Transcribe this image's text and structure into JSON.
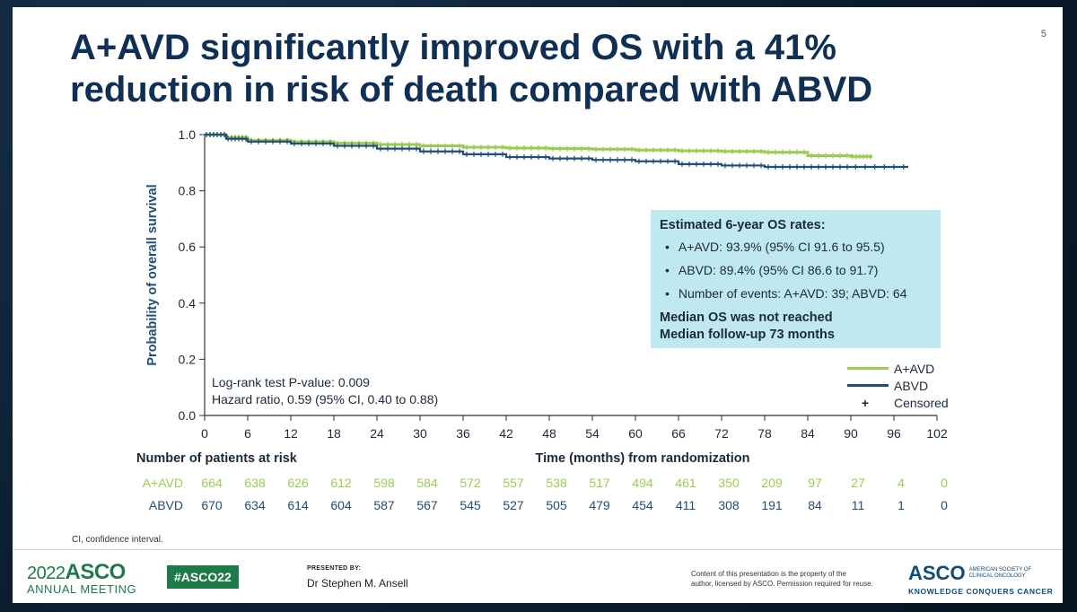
{
  "slide": {
    "title_line1": "A+AVD significantly improved OS with a 41%",
    "title_line2": "reduction in risk of death compared with ABVD",
    "slide_number": "5"
  },
  "colors": {
    "aavd": "#9ccc52",
    "abvd": "#1f4e79",
    "title": "#0f2f55",
    "box": "#bfe9ee"
  },
  "chart_data": {
    "type": "line",
    "xlabel": "Time (months) from randomization",
    "ylabel": "Probability of overall survival",
    "x_ticks": [
      0,
      6,
      12,
      18,
      24,
      30,
      36,
      42,
      48,
      54,
      60,
      66,
      72,
      78,
      84,
      90,
      96,
      102
    ],
    "y_ticks": [
      "0.0",
      "0.2",
      "0.4",
      "0.6",
      "0.8",
      "1.0"
    ],
    "xlim": [
      0,
      102
    ],
    "ylim": [
      0,
      1
    ],
    "series": [
      {
        "name": "A+AVD",
        "color": "#9ccc52",
        "x": [
          0,
          3,
          6,
          12,
          18,
          24,
          30,
          36,
          42,
          48,
          54,
          60,
          66,
          72,
          78,
          84,
          90,
          93
        ],
        "y": [
          1.0,
          0.99,
          0.98,
          0.975,
          0.97,
          0.965,
          0.96,
          0.955,
          0.952,
          0.95,
          0.948,
          0.945,
          0.942,
          0.94,
          0.937,
          0.925,
          0.922,
          0.922
        ]
      },
      {
        "name": "ABVD",
        "color": "#1f4e79",
        "x": [
          0,
          3,
          6,
          12,
          18,
          24,
          30,
          36,
          42,
          48,
          54,
          60,
          66,
          72,
          78,
          84,
          90,
          98
        ],
        "y": [
          1.0,
          0.985,
          0.975,
          0.968,
          0.96,
          0.95,
          0.94,
          0.93,
          0.92,
          0.915,
          0.91,
          0.905,
          0.895,
          0.89,
          0.885,
          0.885,
          0.885,
          0.885
        ]
      }
    ],
    "legend": [
      "A+AVD",
      "ABVD",
      "Censored"
    ],
    "legend_placement": "bottom-right",
    "censored_symbol": "+",
    "annotations": {
      "logrank": "Log-rank test P-value: 0.009",
      "hazard": "Hazard ratio, 0.59 (95% CI, 0.40 to 0.88)"
    },
    "risk_table": {
      "title": "Number of patients at risk",
      "rows": [
        {
          "label": "A+AVD",
          "color": "#9ccc52",
          "values": [
            664,
            638,
            626,
            612,
            598,
            584,
            572,
            557,
            538,
            517,
            494,
            461,
            350,
            209,
            97,
            27,
            4,
            0
          ]
        },
        {
          "label": "ABVD",
          "color": "#1f4e79",
          "values": [
            670,
            634,
            614,
            604,
            587,
            567,
            545,
            527,
            505,
            479,
            454,
            411,
            308,
            191,
            84,
            11,
            1,
            0
          ]
        }
      ]
    }
  },
  "info_box": {
    "heading": "Estimated 6-year OS rates:",
    "bullets": [
      "A+AVD: 93.9% (95% CI 91.6 to 95.5)",
      "ABVD: 89.4% (95% CI 86.6 to 91.7)",
      "Number of events: A+AVD: 39; ABVD: 64"
    ],
    "bold_line1": "Median OS was not reached",
    "bold_line2": "Median follow-up 73 months"
  },
  "footnote": "CI, confidence interval.",
  "footer": {
    "meeting_year": "2022",
    "meeting_brand": "ASCO",
    "meeting_sub": "ANNUAL MEETING",
    "hashtag": "#ASCO22",
    "presented_label": "PRESENTED BY:",
    "presenter": "Dr Stephen M. Ansell",
    "copyright_line1": "Content of this presentation is the property of the",
    "copyright_line2": "author, licensed by ASCO. Permission required for reuse.",
    "society_logo": "ASCO",
    "society_name1": "AMERICAN SOCIETY OF",
    "society_name2": "CLINICAL ONCOLOGY",
    "tagline": "KNOWLEDGE CONQUERS CANCER"
  }
}
